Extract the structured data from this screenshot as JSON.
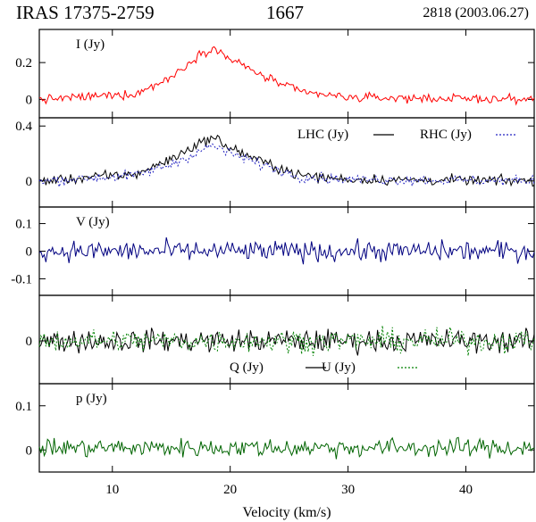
{
  "header": {
    "source": "IRAS 17375-2759",
    "frequency": "1667",
    "observation": "2818 (2003.06.27)"
  },
  "chart_data": {
    "type": "line",
    "xlabel": "Velocity (km/s)",
    "xlim": [
      3.8,
      45.8
    ],
    "xticks": [
      10,
      20,
      30,
      40
    ],
    "panels": [
      {
        "id": "I",
        "label": "I (Jy)",
        "ylim": [
          -0.1,
          0.38
        ],
        "yticks": [
          {
            "value": 0.2,
            "label": "0.2"
          },
          {
            "value": 0,
            "label": "0"
          }
        ],
        "legend": [],
        "series": [
          {
            "key": "I",
            "name": "",
            "color": "#ff0000",
            "dash": "",
            "profile": [
              [
                4,
                0
              ],
              [
                12,
                0.03
              ],
              [
                15,
                0.12
              ],
              [
                17.5,
                0.25
              ],
              [
                18.5,
                0.28
              ],
              [
                20,
                0.22
              ],
              [
                23,
                0.12
              ],
              [
                26,
                0.04
              ],
              [
                30,
                0.01
              ],
              [
                46,
                0
              ]
            ],
            "noise": 0.022
          }
        ]
      },
      {
        "id": "LR",
        "label": "",
        "ylim": [
          -0.19,
          0.46
        ],
        "yticks": [
          {
            "value": 0.4,
            "label": "0.4"
          },
          {
            "value": 0,
            "label": "0"
          }
        ],
        "legend": [
          {
            "text": "LHC (Jy)",
            "color": "#000000",
            "dash": ""
          },
          {
            "text": "RHC (Jy)",
            "color": "#2020c0",
            "dash": "2,2"
          }
        ],
        "series": [
          {
            "key": "LHC",
            "name": "LHC (Jy)",
            "color": "#000000",
            "dash": "",
            "profile": [
              [
                4,
                0
              ],
              [
                12,
                0.05
              ],
              [
                15,
                0.16
              ],
              [
                17.5,
                0.28
              ],
              [
                18.5,
                0.32
              ],
              [
                20,
                0.24
              ],
              [
                23,
                0.13
              ],
              [
                26,
                0.04
              ],
              [
                30,
                0.01
              ],
              [
                46,
                0
              ]
            ],
            "noise": 0.035
          },
          {
            "key": "RHC",
            "name": "RHC (Jy)",
            "color": "#2020c0",
            "dash": "2,2",
            "profile": [
              [
                4,
                0
              ],
              [
                12,
                0.04
              ],
              [
                15,
                0.12
              ],
              [
                17.5,
                0.22
              ],
              [
                18.5,
                0.26
              ],
              [
                20,
                0.2
              ],
              [
                23,
                0.11
              ],
              [
                26,
                0.03
              ],
              [
                30,
                0.01
              ],
              [
                46,
                0
              ]
            ],
            "noise": 0.035
          }
        ]
      },
      {
        "id": "V",
        "label": "V (Jy)",
        "ylim": [
          -0.16,
          0.16
        ],
        "yticks": [
          {
            "value": 0.1,
            "label": "0.1"
          },
          {
            "value": 0,
            "label": "0"
          },
          {
            "value": -0.1,
            "label": "-0.1"
          }
        ],
        "legend": [],
        "series": [
          {
            "key": "V",
            "name": "",
            "color": "#000080",
            "dash": "",
            "profile": [
              [
                4,
                0
              ],
              [
                46,
                0
              ]
            ],
            "noise": 0.035
          }
        ]
      },
      {
        "id": "QU",
        "label": "",
        "ylim": [
          -0.16,
          0.17
        ],
        "yticks": [
          {
            "value": 0,
            "label": "0"
          }
        ],
        "legend": [
          {
            "text": "Q (Jy)",
            "color": "#000000",
            "dash": ""
          },
          {
            "text": "U (Jy)",
            "color": "#008000",
            "dash": "2,2"
          }
        ],
        "series": [
          {
            "key": "Q",
            "name": "Q (Jy)",
            "color": "#000000",
            "dash": "",
            "profile": [
              [
                4,
                0
              ],
              [
                46,
                0
              ]
            ],
            "noise": 0.04
          },
          {
            "key": "U",
            "name": "U (Jy)",
            "color": "#008000",
            "dash": "2,2",
            "profile": [
              [
                4,
                0
              ],
              [
                46,
                0
              ]
            ],
            "noise": 0.04
          }
        ]
      },
      {
        "id": "p",
        "label": "p (Jy)",
        "ylim": [
          -0.05,
          0.15
        ],
        "yticks": [
          {
            "value": 0.1,
            "label": "0.1"
          },
          {
            "value": 0,
            "label": "0"
          }
        ],
        "legend": [],
        "series": [
          {
            "key": "p",
            "name": "",
            "color": "#006400",
            "dash": "",
            "profile": [
              [
                4,
                0.005
              ],
              [
                46,
                0.005
              ]
            ],
            "noise": 0.02
          }
        ]
      }
    ]
  }
}
